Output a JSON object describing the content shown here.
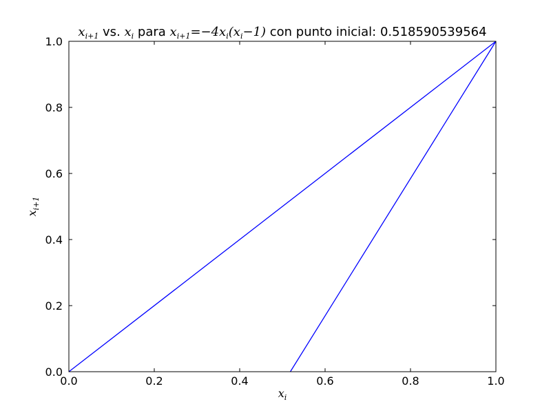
{
  "chart_data": {
    "type": "line",
    "title": {
      "part1_math": "x",
      "part1_sub": "i+1",
      "part2": " vs. ",
      "part3_math": "x",
      "part3_sub": "i",
      "part4": " para ",
      "part5_math": "x",
      "part5_sub": "i+1",
      "part6_math": "=−4x",
      "part6_sub": "i",
      "part7_math": "(x",
      "part7_sub": "i",
      "part8_math": "−1)",
      "part9": " con punto inicial: 0.518590539564"
    },
    "xlabel": {
      "base": "x",
      "sub": "i"
    },
    "ylabel": {
      "base": "x",
      "sub": "i+1"
    },
    "xlim": [
      0,
      1
    ],
    "ylim": [
      0,
      1
    ],
    "grid": false,
    "xticks": [
      "0.0",
      "0.2",
      "0.4",
      "0.6",
      "0.8",
      "1.0"
    ],
    "yticks": [
      "0.0",
      "0.2",
      "0.4",
      "0.6",
      "0.8",
      "1.0"
    ],
    "series": [
      {
        "color": "#0000ff",
        "x": [
          0.518590539564,
          1.0,
          0.0,
          1.0
        ],
        "y": [
          0.0,
          1.0,
          0.0,
          1.0
        ]
      }
    ]
  }
}
